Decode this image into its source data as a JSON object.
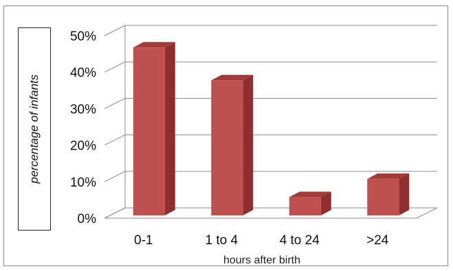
{
  "chart_data": {
    "type": "bar",
    "title": "",
    "xlabel": "hours after birth",
    "ylabel": "percentage of infants",
    "categories": [
      "0-1",
      "1 to 4",
      "4 to 24",
      ">24"
    ],
    "series": [
      {
        "values": [
          46,
          37,
          5,
          10
        ]
      }
    ],
    "ylim": [
      0,
      50
    ],
    "yticks": [
      "0%",
      "10%",
      "20%",
      "30%",
      "40%",
      "50%"
    ],
    "grid": true,
    "legend": "none",
    "style": "3d-column"
  },
  "colors": {
    "bar_front": "#c0504d",
    "bar_side": "#8e2f2d",
    "bar_top": "#a33b38",
    "gridline": "#8a8a8a"
  }
}
